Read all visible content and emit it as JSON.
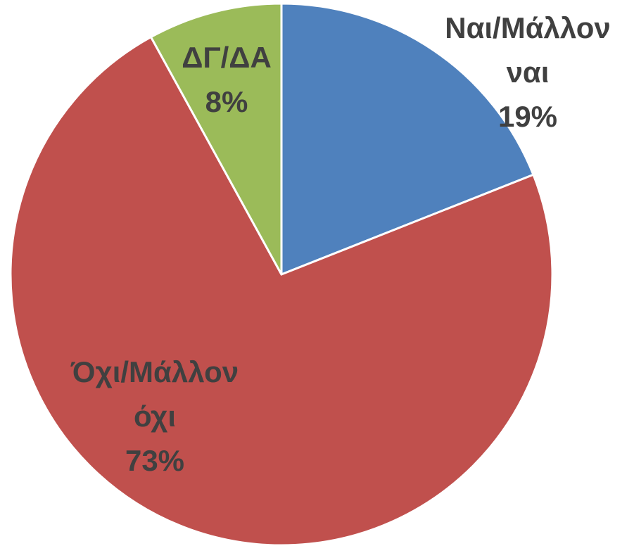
{
  "chart_data": {
    "type": "pie",
    "categories": [
      "Ναι/Μάλλον ναι",
      "Όχι/Μάλλον όχι",
      "ΔΓ/ΔΑ"
    ],
    "values": [
      19,
      73,
      8
    ],
    "value_labels": [
      "19%",
      "73%",
      "8%"
    ],
    "colors": [
      "#4f81bd",
      "#c0504d",
      "#9bbb59"
    ]
  }
}
